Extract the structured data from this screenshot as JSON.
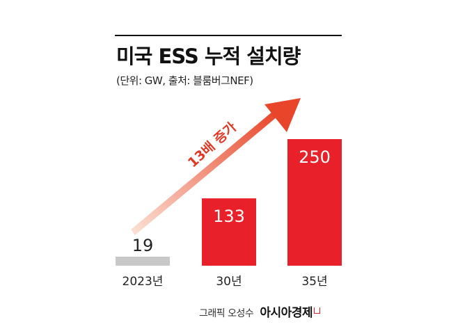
{
  "header": {
    "title": "미국 ESS 누적 설치량",
    "subtitle": "(단위: GW, 출처: 블룸버그NEF)"
  },
  "colors": {
    "bar_base": "#c8c8c8",
    "bar_highlight": "#e8202a",
    "arrow_start": "#fbe3d6",
    "arrow_end": "#e8452a",
    "arrow_label": "#e03a25"
  },
  "annotation": {
    "arrow_label": "13배 증가"
  },
  "chart_data": {
    "type": "bar",
    "categories": [
      "2023년",
      "30년",
      "35년"
    ],
    "values": [
      19,
      133,
      250
    ],
    "data_labels": [
      "19",
      "133",
      "250"
    ],
    "title": "미국 ESS 누적 설치량",
    "unit": "GW",
    "source": "블룸버그NEF",
    "ylim": [
      0,
      250
    ],
    "grid": false,
    "legend": "none"
  },
  "footer": {
    "artist": "그래픽 오성수",
    "brand": "아시아경제"
  }
}
